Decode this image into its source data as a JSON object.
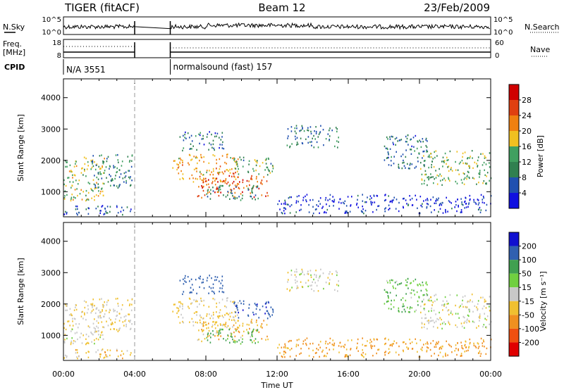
{
  "header": {
    "title": "TIGER (fitACF)",
    "beam": "Beam 12",
    "date": "23/Feb/2009"
  },
  "chart_data": {
    "type": "heatmap",
    "xlabel": "Time UT",
    "x_ticks": [
      "00:00",
      "04:00",
      "08:00",
      "12:00",
      "16:00",
      "20:00",
      "00:00"
    ],
    "x_range_hours": [
      0,
      24
    ],
    "data_gap_hours": [
      4.0,
      6.0
    ],
    "nsky_panel": {
      "label": "N.Sky",
      "right_label": "N.Search",
      "left_ticks": [
        "10^5",
        "10^0"
      ],
      "right_ticks": [
        "10^5",
        "10^0"
      ]
    },
    "freq_panel": {
      "label_line1": "Freq.",
      "label_line2": "[MHz]",
      "right_label": "Nave",
      "left_ticks": [
        "18",
        "8"
      ],
      "right_ticks": [
        "60",
        "0"
      ]
    },
    "cpid_panel": {
      "label": "CPID",
      "segments": [
        {
          "start_hour": 0.0,
          "end_hour": 4.0,
          "text": "N/A 3551"
        },
        {
          "start_hour": 6.0,
          "end_hour": 24.0,
          "text": "normalsound (fast) 157"
        }
      ]
    },
    "power_panel": {
      "ylabel": "Slant Range [km]",
      "y_ticks": [
        1000,
        2000,
        3000,
        4000
      ],
      "ylim": [
        200,
        4600
      ],
      "colorbar_label": "Power [dB]",
      "colorbar_ticks": [
        "4",
        "8",
        "12",
        "16",
        "20",
        "24",
        "28"
      ],
      "colors": [
        "#1010e0",
        "#2050b0",
        "#308050",
        "#40a060",
        "#f0c020",
        "#f08010",
        "#e04010",
        "#d00000"
      ]
    },
    "velocity_panel": {
      "ylabel": "Slant Range [km]",
      "y_ticks": [
        1000,
        2000,
        3000,
        4000
      ],
      "ylim": [
        200,
        4600
      ],
      "colorbar_label": "Velocity [m s⁻¹]",
      "colorbar_ticks": [
        "200",
        "100",
        "50",
        "15",
        "-15",
        "-50",
        "-100",
        "-200"
      ],
      "colors": [
        "#1010d0",
        "#3060b0",
        "#40a050",
        "#70d040",
        "#c8c8c8",
        "#f0c030",
        "#f09020",
        "#f05010",
        "#e00000"
      ]
    },
    "echo_regions": [
      {
        "t0": 0.0,
        "t1": 2.3,
        "r0": 700,
        "r1": 2100,
        "power": 18,
        "velocity": -10
      },
      {
        "t0": 1.5,
        "t1": 3.9,
        "r0": 1100,
        "r1": 2200,
        "power": 12,
        "velocity": -15
      },
      {
        "t0": 6.0,
        "t1": 9.8,
        "r0": 1300,
        "r1": 2200,
        "power": 22,
        "velocity": -20
      },
      {
        "t0": 7.5,
        "t1": 11.5,
        "r0": 800,
        "r1": 1500,
        "power": 27,
        "velocity": -40
      },
      {
        "t0": 6.5,
        "t1": 9.0,
        "r0": 2300,
        "r1": 2900,
        "power": 10,
        "velocity": 150
      },
      {
        "t0": 9.5,
        "t1": 11.8,
        "r0": 1500,
        "r1": 2100,
        "power": 14,
        "velocity": 180
      },
      {
        "t0": 8.0,
        "t1": 11.0,
        "r0": 700,
        "r1": 1200,
        "power": 12,
        "velocity": 60
      },
      {
        "t0": 12.5,
        "t1": 15.5,
        "r0": 2400,
        "r1": 3100,
        "power": 11,
        "velocity": 0
      },
      {
        "t0": 18.0,
        "t1": 20.5,
        "r0": 1700,
        "r1": 2800,
        "power": 10,
        "velocity": 40
      },
      {
        "t0": 20.0,
        "t1": 24.0,
        "r0": 1200,
        "r1": 2300,
        "power": 16,
        "velocity": -5
      },
      {
        "t0": 12.0,
        "t1": 24.0,
        "r0": 300,
        "r1": 900,
        "power": 6,
        "velocity": -60
      },
      {
        "t0": 0.0,
        "t1": 4.0,
        "r0": 250,
        "r1": 550,
        "power": 8,
        "velocity": -30
      }
    ]
  }
}
